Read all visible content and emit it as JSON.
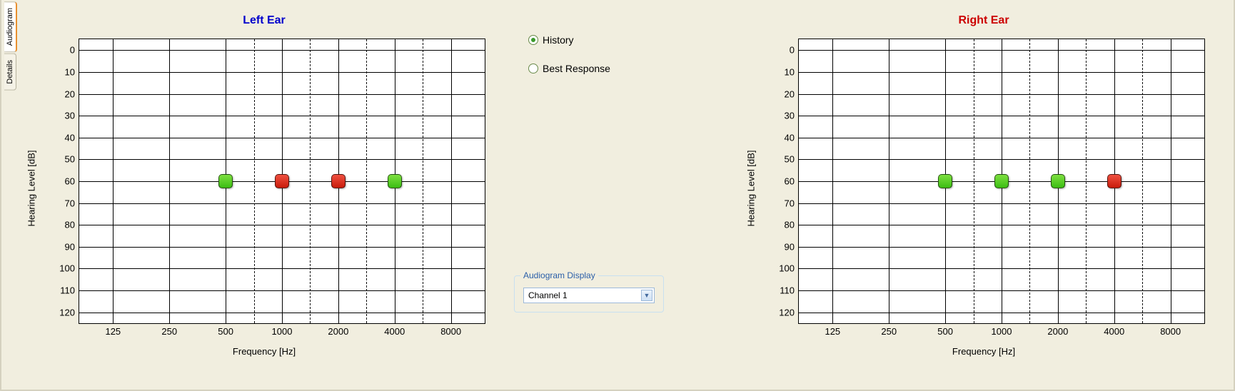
{
  "sidetabs": [
    {
      "label": "Audiogram",
      "active": true
    },
    {
      "label": "Details",
      "active": false
    }
  ],
  "radios": {
    "history": {
      "label": "History",
      "selected": true
    },
    "bestResponse": {
      "label": "Best Response",
      "selected": false
    }
  },
  "display_group": {
    "legend": "Audiogram Display",
    "combo_value": "Channel 1"
  },
  "axes": {
    "ylabel": "Hearing Level [dB]",
    "xlabel": "Frequency [Hz]",
    "y_min": -5,
    "y_max": 125,
    "y_ticks": [
      0,
      10,
      20,
      30,
      40,
      50,
      60,
      70,
      80,
      90,
      100,
      110,
      120
    ],
    "x_major_ticks": [
      125,
      250,
      500,
      1000,
      2000,
      4000,
      8000
    ],
    "x_minor_between": [
      750,
      1500,
      3000,
      6000
    ],
    "x_left_pad_units": 0.6,
    "x_right_pad_units": 0.6
  },
  "colors": {
    "panel_bg": "#f1eedf",
    "plot_bg": "#ffffff",
    "grid": "#000000",
    "title_left": "#0000cc",
    "title_right": "#cc0000",
    "marker_green": "#4fcb20",
    "marker_red": "#d9291a",
    "fieldset_border": "#c8e0f0",
    "fieldset_legend": "#2a5ea8"
  },
  "charts": {
    "left": {
      "title": "Left Ear",
      "points": [
        {
          "freq": 500,
          "db": 60,
          "color": "green"
        },
        {
          "freq": 1000,
          "db": 60,
          "color": "red"
        },
        {
          "freq": 2000,
          "db": 60,
          "color": "red"
        },
        {
          "freq": 4000,
          "db": 60,
          "color": "green"
        }
      ]
    },
    "right": {
      "title": "Right Ear",
      "points": [
        {
          "freq": 500,
          "db": 60,
          "color": "green"
        },
        {
          "freq": 1000,
          "db": 60,
          "color": "green"
        },
        {
          "freq": 2000,
          "db": 60,
          "color": "green"
        },
        {
          "freq": 4000,
          "db": 60,
          "color": "red"
        }
      ]
    }
  }
}
